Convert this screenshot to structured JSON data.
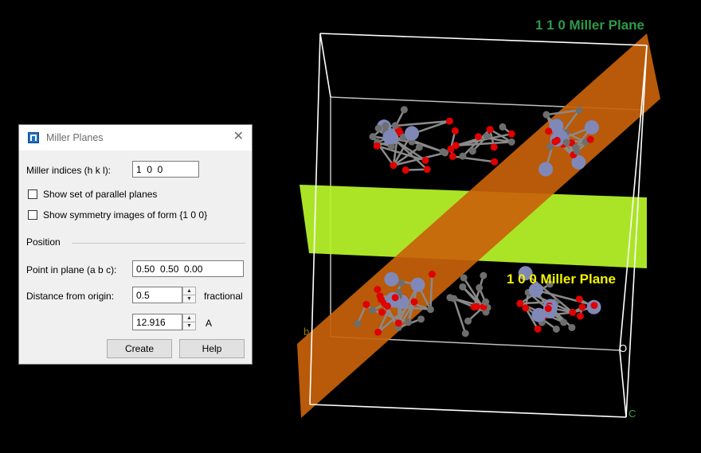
{
  "viewer": {
    "background_color": "#000000",
    "plane_110": {
      "label": "1 1 0 Miller Plane",
      "label_color": "#2e9a48",
      "plane_color": "#c8620a"
    },
    "plane_100": {
      "label": "1 0 0 Miller Plane",
      "label_color": "#f2f200",
      "plane_color": "#b4f028"
    },
    "axis_labels": {
      "b": "b",
      "o": "O",
      "c": "C"
    }
  },
  "dialog": {
    "title": "Miller Planes",
    "miller_indices_label": "Miller indices (h k l):",
    "miller_indices_value": "1  0  0",
    "show_parallel_label": "Show set of parallel planes",
    "show_parallel_checked": false,
    "show_symmetry_label": "Show symmetry images of form {1 0 0}",
    "show_symmetry_checked": false,
    "position_section_label": "Position",
    "point_in_plane_label": "Point in plane (a b c):",
    "point_in_plane_value": "0.50  0.50  0.00",
    "distance_label": "Distance from origin:",
    "distance_fractional_value": "0.5",
    "distance_fractional_unit": "fractional",
    "distance_angstrom_value": "12.916",
    "distance_angstrom_unit": "A",
    "create_button": "Create",
    "help_button": "Help"
  }
}
